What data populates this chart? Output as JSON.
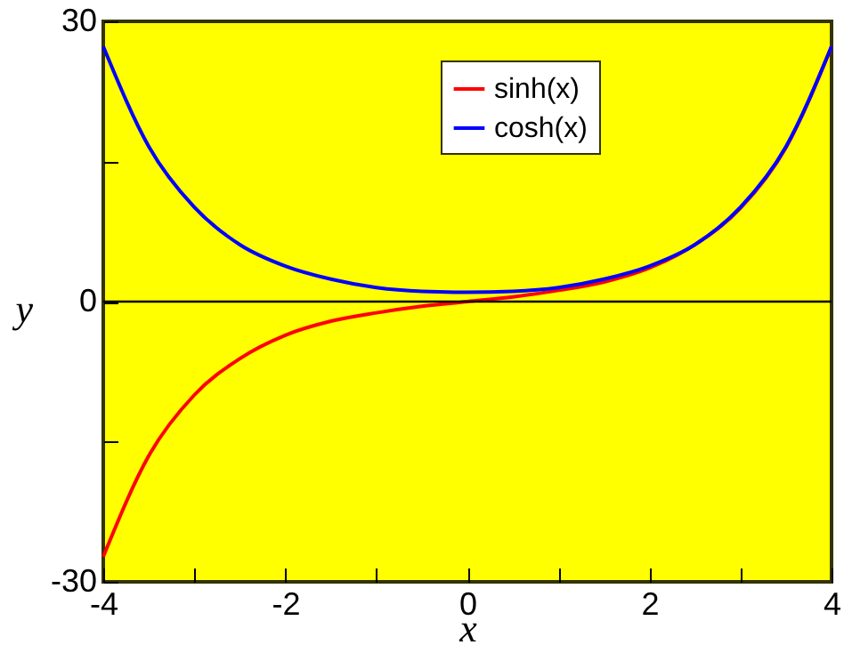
{
  "chart_data": {
    "type": "line",
    "xlabel": "x",
    "ylabel": "y",
    "x": [
      -4,
      -3.5,
      -3,
      -2.5,
      -2,
      -1.5,
      -1,
      -0.5,
      0,
      0.5,
      1,
      1.5,
      2,
      2.5,
      3,
      3.5,
      4
    ],
    "series": [
      {
        "name": "sinh(x)",
        "color": "#ff0000",
        "values": [
          -27.3,
          -16.5,
          -10.0,
          -6.1,
          -3.6,
          -2.1,
          -1.2,
          -0.5,
          0,
          0.5,
          1.2,
          2.1,
          3.6,
          6.1,
          10.0,
          16.5,
          27.3
        ]
      },
      {
        "name": "cosh(x)",
        "color": "#0000ff",
        "values": [
          27.3,
          16.6,
          10.1,
          6.1,
          3.8,
          2.4,
          1.5,
          1.1,
          1,
          1.1,
          1.5,
          2.4,
          3.8,
          6.1,
          10.1,
          16.6,
          27.3
        ]
      }
    ],
    "xlim": [
      -4,
      4
    ],
    "xticks": [
      -4,
      {
        "value": -3,
        "label": null
      },
      -2,
      {
        "value": -1,
        "label": null
      },
      0,
      {
        "value": 1,
        "label": null
      },
      2,
      {
        "value": 3,
        "label": null
      },
      4
    ],
    "ylim": [
      -30,
      30
    ],
    "yticks": [
      -30,
      {
        "value": -15,
        "label": null
      },
      0,
      {
        "value": 15,
        "label": null
      },
      30
    ],
    "ref_lines": [
      {
        "axis": "y",
        "value": 0,
        "color": "#000000"
      }
    ],
    "legend": "top",
    "marker": "none",
    "line_style": "solid",
    "grid": false
  }
}
